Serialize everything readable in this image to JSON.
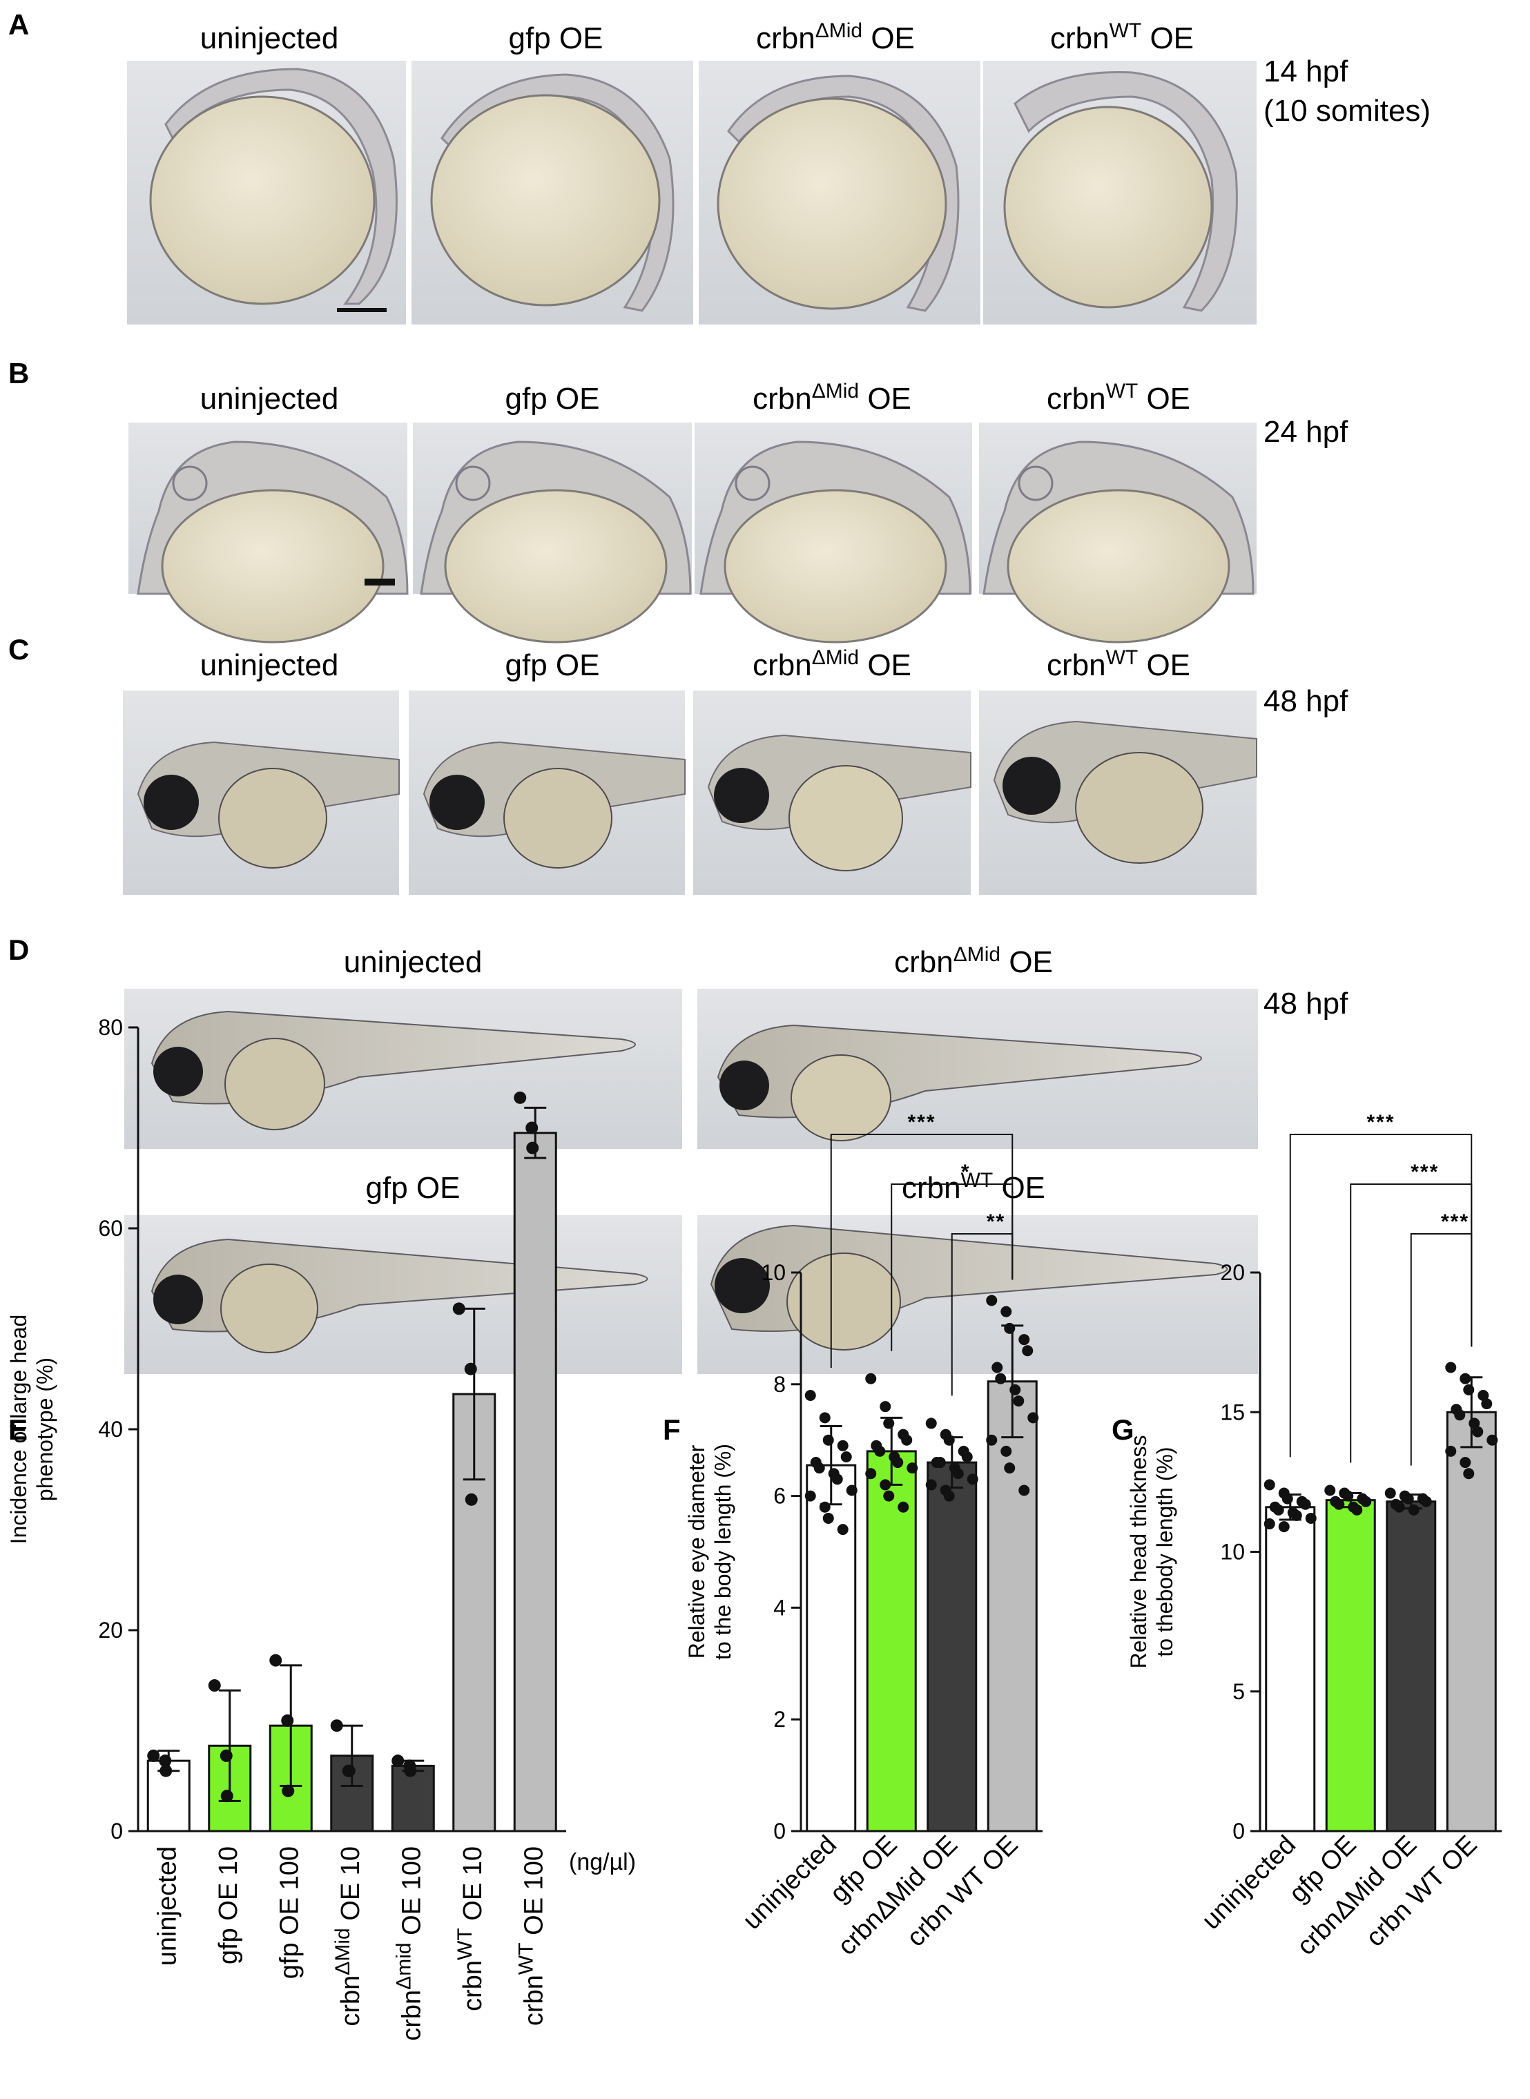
{
  "panels": {
    "A": {
      "letter": "A",
      "stage": "14 hpf",
      "stage2": "(10 somites)"
    },
    "B": {
      "letter": "B",
      "stage": "24 hpf"
    },
    "C": {
      "letter": "C",
      "stage": "48 hpf"
    },
    "D": {
      "letter": "D",
      "stage": "48 hpf"
    },
    "E": {
      "letter": "E"
    },
    "F": {
      "letter": "F"
    },
    "G": {
      "letter": "G"
    }
  },
  "labels": {
    "uninjected": "uninjected",
    "gfp": "gfp OE",
    "crbn": "crbn",
    "dmid": "ΔMid",
    "dmid_lower": "Δmid",
    "wt": "WT",
    "oe": "OE"
  },
  "colors": {
    "uninjected": "#ffffff",
    "gfp": "#7cf22a",
    "crbn_dmid": "#3d3d3d",
    "crbn_wt": "#bdbdbd",
    "embryo_bg": "#d5d7db",
    "yolk": "#e6e0cc"
  },
  "chart_data": [
    {
      "panel": "E",
      "type": "bar",
      "categories": [
        "uninjected",
        "gfp OE 10",
        "gfp OE 100",
        "crbnΔMid OE 10",
        "crbnΔmid OE 100",
        "crbnWT OE 10",
        "crbnWT OE 100"
      ],
      "cat_parts": [
        [
          "uninjected",
          "",
          ""
        ],
        [
          "gfp OE 10",
          "",
          ""
        ],
        [
          "gfp OE 100",
          "",
          ""
        ],
        [
          "crbn",
          "ΔMid",
          " OE 10"
        ],
        [
          "crbn",
          "Δmid",
          " OE 100"
        ],
        [
          "crbn",
          "WT",
          " OE 10"
        ],
        [
          "crbn",
          "WT",
          " OE 100"
        ]
      ],
      "values": [
        7,
        8.5,
        10.5,
        7.5,
        6.5,
        43.5,
        69.5
      ],
      "errors": [
        1,
        5.5,
        6,
        3,
        0.5,
        8.5,
        2.5
      ],
      "points": [
        [
          7.5,
          7,
          6
        ],
        [
          14.5,
          7.5,
          3.5
        ],
        [
          17,
          11,
          4
        ],
        [
          10.5,
          6,
          6
        ],
        [
          7,
          6.5,
          6
        ],
        [
          52,
          46,
          33
        ],
        [
          73,
          70,
          68
        ]
      ],
      "colors": [
        "#ffffff",
        "#7cf22a",
        "#7cf22a",
        "#3d3d3d",
        "#3d3d3d",
        "#bdbdbd",
        "#bdbdbd"
      ],
      "ylabel_line1": "Incidence of large head",
      "ylabel_line2": "phenotype (%)",
      "unit": "(ng/µl)",
      "ylim": [
        0,
        80
      ],
      "yticks": [
        0,
        20,
        40,
        60,
        80
      ]
    },
    {
      "panel": "F",
      "type": "bar",
      "categories": [
        "uninjected",
        "gfp OE",
        "crbnΔMid OE",
        "crbn WT OE"
      ],
      "values": [
        6.55,
        6.8,
        6.6,
        8.05
      ],
      "errors": [
        0.7,
        0.6,
        0.45,
        1.0
      ],
      "colors": [
        "#ffffff",
        "#7cf22a",
        "#3d3d3d",
        "#bdbdbd"
      ],
      "points": [
        [
          7.8,
          7.4,
          7.0,
          6.9,
          6.7,
          6.6,
          6.5,
          6.4,
          6.3,
          6.1,
          6.0,
          5.8,
          5.6,
          5.4
        ],
        [
          8.1,
          7.6,
          7.3,
          7.1,
          7.0,
          6.9,
          6.8,
          6.7,
          6.6,
          6.5,
          6.4,
          6.2,
          6.0,
          5.8
        ],
        [
          7.3,
          7.1,
          7.0,
          6.8,
          6.7,
          6.6,
          6.6,
          6.5,
          6.4,
          6.3,
          6.2,
          6.1,
          6.0
        ],
        [
          9.5,
          9.3,
          9.0,
          8.8,
          8.6,
          8.3,
          8.1,
          7.9,
          7.7,
          7.4,
          7.0,
          6.8,
          6.5,
          6.1
        ]
      ],
      "ylabel_line1": "Relative eye diameter",
      "ylabel_line2": "to the body length (%)",
      "ylim": [
        0,
        10
      ],
      "yticks": [
        0,
        2,
        4,
        6,
        8,
        10
      ],
      "significance": [
        {
          "from": 0,
          "to": 3,
          "label": "***"
        },
        {
          "from": 1,
          "to": 3,
          "label": "*"
        },
        {
          "from": 2,
          "to": 3,
          "label": "**"
        }
      ]
    },
    {
      "panel": "G",
      "type": "bar",
      "categories": [
        "uninjected",
        "gfp OE",
        "crbnΔMid OE",
        "crbn WT OE"
      ],
      "values": [
        11.6,
        11.85,
        11.8,
        15.0
      ],
      "errors": [
        0.45,
        0.25,
        0.25,
        1.25
      ],
      "colors": [
        "#ffffff",
        "#7cf22a",
        "#3d3d3d",
        "#bdbdbd"
      ],
      "points": [
        [
          12.4,
          12.1,
          11.9,
          11.8,
          11.7,
          11.6,
          11.5,
          11.4,
          11.3,
          11.2,
          11.0,
          10.9
        ],
        [
          12.2,
          12.1,
          12.0,
          11.9,
          11.8,
          11.8,
          11.7,
          11.6,
          11.5
        ],
        [
          12.1,
          12.0,
          11.9,
          11.9,
          11.8,
          11.7,
          11.6,
          11.5
        ],
        [
          16.6,
          16.2,
          15.8,
          15.6,
          15.3,
          15.1,
          14.9,
          14.6,
          14.3,
          14.0,
          13.6,
          13.2,
          12.8
        ]
      ],
      "ylabel_line1": "Relative head thickness",
      "ylabel_line2": "to thebody length (%)",
      "ylim": [
        0,
        20
      ],
      "yticks": [
        0,
        5,
        10,
        15,
        20
      ],
      "significance": [
        {
          "from": 0,
          "to": 3,
          "label": "***"
        },
        {
          "from": 1,
          "to": 3,
          "label": "***"
        },
        {
          "from": 2,
          "to": 3,
          "label": "***"
        }
      ]
    }
  ]
}
